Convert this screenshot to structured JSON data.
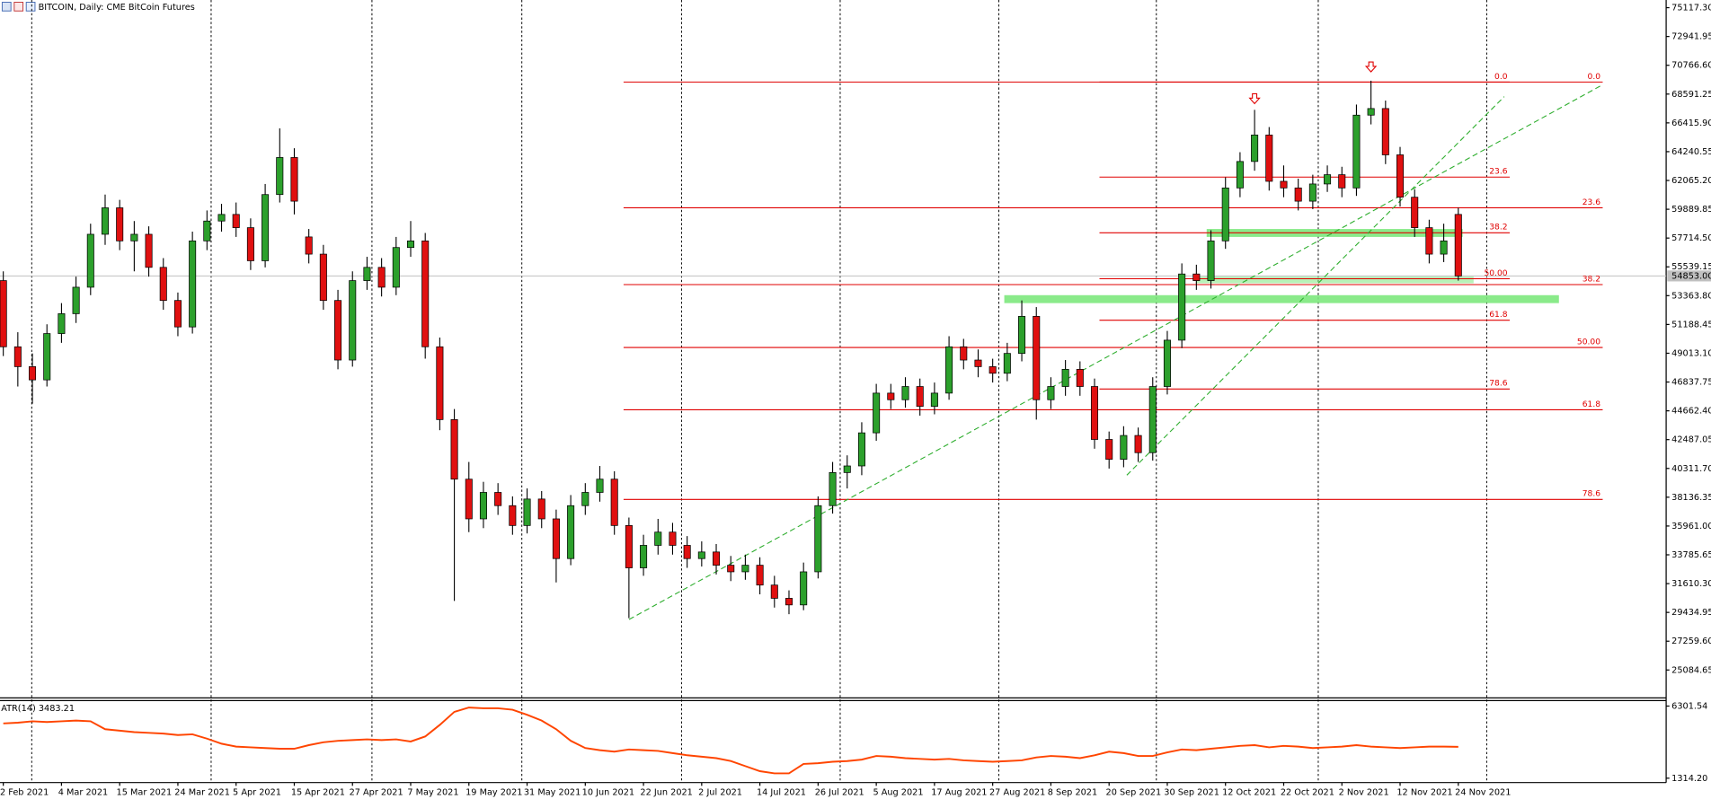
{
  "chart_data": {
    "type": "candlestick",
    "title": "BITCOIN, Daily:  CME BitCoin Futures",
    "up_color": "#2ca02c",
    "down_color": "#e01010",
    "ylim": [
      23020,
      75695
    ],
    "yticks": [
      {
        "value": 75117.3,
        "label": "75117.30"
      },
      {
        "value": 72941.95,
        "label": "72941.95"
      },
      {
        "value": 70766.6,
        "label": "70766.60"
      },
      {
        "value": 68591.25,
        "label": "68591.25"
      },
      {
        "value": 66415.9,
        "label": "66415.90"
      },
      {
        "value": 64240.55,
        "label": "64240.55"
      },
      {
        "value": 62065.2,
        "label": "62065.20"
      },
      {
        "value": 59889.85,
        "label": "59889.85"
      },
      {
        "value": 57714.5,
        "label": "57714.50"
      },
      {
        "value": 55539.15,
        "label": "55539.15"
      },
      {
        "value": 53363.8,
        "label": "53363.80"
      },
      {
        "value": 51188.45,
        "label": "51188.45"
      },
      {
        "value": 49013.1,
        "label": "49013.10"
      },
      {
        "value": 46837.75,
        "label": "46837.75"
      },
      {
        "value": 44662.4,
        "label": "44662.40"
      },
      {
        "value": 42487.05,
        "label": "42487.05"
      },
      {
        "value": 40311.7,
        "label": "40311.70"
      },
      {
        "value": 38136.35,
        "label": "38136.35"
      },
      {
        "value": 35961,
        "label": "35961.00"
      },
      {
        "value": 33785.65,
        "label": "33785.65"
      },
      {
        "value": 31610.3,
        "label": "31610.30"
      },
      {
        "value": 29434.95,
        "label": "29434.95"
      },
      {
        "value": 27259.6,
        "label": "27259.60"
      },
      {
        "value": 25084.65,
        "label": "25084.65"
      }
    ],
    "last_price_label": "54853.00",
    "categories": [
      "2 Feb 2021",
      null,
      null,
      null,
      "4 Mar 2021",
      null,
      null,
      null,
      "15 Mar 2021",
      null,
      null,
      null,
      "24 Mar 2021",
      null,
      null,
      null,
      "5 Apr 2021",
      null,
      null,
      null,
      "15 Apr 2021",
      null,
      null,
      null,
      "27 Apr 2021",
      null,
      null,
      null,
      "7 May 2021",
      null,
      null,
      null,
      "19 May 2021",
      null,
      null,
      null,
      "31 May 2021",
      null,
      null,
      null,
      "10 Jun 2021",
      null,
      null,
      null,
      "22 Jun 2021",
      null,
      null,
      null,
      "2 Jul 2021",
      null,
      null,
      null,
      "14 Jul 2021",
      null,
      null,
      null,
      "26 Jul 2021",
      null,
      null,
      null,
      "5 Aug 2021",
      null,
      null,
      null,
      "17 Aug 2021",
      null,
      null,
      null,
      "27 Aug 2021",
      null,
      null,
      null,
      "8 Sep 2021",
      null,
      null,
      null,
      "20 Sep 2021",
      null,
      null,
      null,
      "30 Sep 2021",
      null,
      null,
      null,
      "12 Oct 2021",
      null,
      null,
      null,
      "22 Oct 2021",
      null,
      null,
      null,
      "2 Nov 2021",
      null,
      null,
      null,
      "12 Nov 2021",
      null,
      null,
      null,
      "24 Nov 2021"
    ],
    "candles": [
      [
        54500,
        55200,
        48800,
        49500
      ],
      [
        49500,
        50600,
        46500,
        48000
      ],
      [
        48000,
        49000,
        45200,
        47000
      ],
      [
        47000,
        51200,
        46500,
        50500
      ],
      [
        50500,
        52800,
        49800,
        52000
      ],
      [
        52000,
        54800,
        51300,
        54000
      ],
      [
        54000,
        58800,
        53400,
        58000
      ],
      [
        58000,
        61000,
        57200,
        60000
      ],
      [
        60000,
        60600,
        56800,
        57500
      ],
      [
        57500,
        59000,
        55200,
        58000
      ],
      [
        58000,
        58600,
        54800,
        55500
      ],
      [
        55500,
        56200,
        52300,
        53000
      ],
      [
        53000,
        53600,
        50300,
        51000
      ],
      [
        51000,
        58200,
        50500,
        57500
      ],
      [
        57500,
        59800,
        56800,
        59000
      ],
      [
        59000,
        60300,
        58200,
        59500
      ],
      [
        59500,
        60400,
        57800,
        58500
      ],
      [
        58500,
        59200,
        55300,
        56000
      ],
      [
        56000,
        61800,
        55500,
        61000
      ],
      [
        61000,
        66000,
        60400,
        63800
      ],
      [
        63800,
        64500,
        59500,
        60500
      ],
      [
        57800,
        58400,
        55800,
        56500
      ],
      [
        56500,
        57200,
        52300,
        53000
      ],
      [
        53000,
        53800,
        47800,
        48500
      ],
      [
        48500,
        55200,
        48000,
        54500
      ],
      [
        54500,
        56300,
        53800,
        55500
      ],
      [
        55500,
        56200,
        53300,
        54000
      ],
      [
        54000,
        57800,
        53400,
        57000
      ],
      [
        57000,
        59000,
        56300,
        57500
      ],
      [
        57500,
        58100,
        48600,
        49500
      ],
      [
        49500,
        50200,
        43200,
        44000
      ],
      [
        44000,
        44800,
        30300,
        39500
      ],
      [
        39500,
        40800,
        35500,
        36500
      ],
      [
        36500,
        39300,
        35800,
        38500
      ],
      [
        38500,
        39200,
        36800,
        37500
      ],
      [
        37500,
        38200,
        35300,
        36000
      ],
      [
        36000,
        38800,
        35400,
        38000
      ],
      [
        38000,
        38600,
        35800,
        36500
      ],
      [
        36500,
        37200,
        31700,
        33500
      ],
      [
        33500,
        38300,
        33000,
        37500
      ],
      [
        37500,
        39200,
        36800,
        38500
      ],
      [
        38500,
        40500,
        37800,
        39500
      ],
      [
        39500,
        40100,
        35300,
        36000
      ],
      [
        36000,
        36600,
        29000,
        32800
      ],
      [
        32800,
        35300,
        32200,
        34500
      ],
      [
        34500,
        36500,
        33800,
        35500
      ],
      [
        35500,
        36200,
        33800,
        34500
      ],
      [
        34500,
        35200,
        32800,
        33500
      ],
      [
        33500,
        34800,
        32900,
        34000
      ],
      [
        34000,
        34600,
        32300,
        33000
      ],
      [
        33000,
        33700,
        31800,
        32500
      ],
      [
        32500,
        33800,
        31900,
        33000
      ],
      [
        33000,
        33600,
        30800,
        31500
      ],
      [
        31500,
        32200,
        29800,
        30500
      ],
      [
        30500,
        31100,
        29300,
        30000
      ],
      [
        30000,
        33200,
        29600,
        32500
      ],
      [
        32500,
        38200,
        32000,
        37500
      ],
      [
        37500,
        40800,
        36900,
        40000
      ],
      [
        40000,
        41300,
        38800,
        40500
      ],
      [
        40500,
        43800,
        39800,
        43000
      ],
      [
        43000,
        46700,
        42400,
        46000
      ],
      [
        46000,
        46700,
        44800,
        45500
      ],
      [
        45500,
        47200,
        44900,
        46500
      ],
      [
        46500,
        47100,
        44300,
        45000
      ],
      [
        45000,
        46800,
        44400,
        46000
      ],
      [
        46000,
        50300,
        45500,
        49500
      ],
      [
        49500,
        50100,
        47800,
        48500
      ],
      [
        48500,
        49300,
        47200,
        48000
      ],
      [
        48000,
        48600,
        46800,
        47500
      ],
      [
        47500,
        49800,
        46900,
        49000
      ],
      [
        49000,
        53000,
        48400,
        51800
      ],
      [
        51800,
        52500,
        44000,
        45500
      ],
      [
        45500,
        47200,
        44800,
        46500
      ],
      [
        46500,
        48500,
        45800,
        47800
      ],
      [
        47800,
        48400,
        45800,
        46500
      ],
      [
        46500,
        47100,
        41800,
        42500
      ],
      [
        42500,
        43100,
        40300,
        41000
      ],
      [
        41000,
        43500,
        40400,
        42800
      ],
      [
        42800,
        43400,
        40800,
        41500
      ],
      [
        41500,
        47200,
        40900,
        46500
      ],
      [
        46500,
        50700,
        45900,
        50000
      ],
      [
        50000,
        55800,
        49400,
        55000
      ],
      [
        55000,
        55700,
        53800,
        54500
      ],
      [
        54500,
        58300,
        53900,
        57500
      ],
      [
        57500,
        62300,
        56900,
        61500
      ],
      [
        61500,
        64200,
        60800,
        63500
      ],
      [
        63500,
        67400,
        62800,
        65500
      ],
      [
        65500,
        66100,
        61300,
        62000
      ],
      [
        62000,
        63200,
        60800,
        61500
      ],
      [
        61500,
        62200,
        59800,
        60500
      ],
      [
        60500,
        62500,
        59900,
        61800
      ],
      [
        61800,
        63200,
        61200,
        62500
      ],
      [
        62500,
        63100,
        60800,
        61500
      ],
      [
        61500,
        67800,
        60900,
        67000
      ],
      [
        67000,
        69600,
        66300,
        67500
      ],
      [
        67500,
        68100,
        63300,
        64000
      ],
      [
        64000,
        64600,
        60100,
        60800
      ],
      [
        60800,
        61400,
        57800,
        58500
      ],
      [
        58500,
        59100,
        55800,
        56500
      ],
      [
        56500,
        58800,
        55900,
        57500
      ],
      [
        59500,
        60000,
        54500,
        54853
      ]
    ],
    "fib_sets": [
      {
        "color": "#e00000",
        "levels": [
          {
            "label": "0.0",
            "price": 69500
          },
          {
            "label": "23.6",
            "price": 60000
          },
          {
            "label": "38.2",
            "price": 54200
          },
          {
            "label": "50.00",
            "price": 49450
          },
          {
            "label": "61.8",
            "price": 44740
          },
          {
            "label": "78.6",
            "price": 37970
          }
        ]
      },
      {
        "color": "#e00000",
        "levels": [
          {
            "label": "0.0",
            "price": 69500
          },
          {
            "label": "23.6",
            "price": 62320
          },
          {
            "label": "38.2",
            "price": 58110
          },
          {
            "label": "50.00",
            "price": 54640
          },
          {
            "label": "61.8",
            "price": 51510
          },
          {
            "label": "78.6",
            "price": 46310
          }
        ]
      }
    ],
    "zones": [
      [
        58400,
        57800
      ],
      [
        54800,
        54300
      ],
      [
        53400,
        52800
      ]
    ],
    "zone_color": "#7de87d",
    "trendlines": [
      [
        28900,
        69300
      ],
      [
        39800,
        68400
      ]
    ],
    "trendline_color": "#2fae2f",
    "arrows": [
      {
        "index": 86,
        "price": 68200
      },
      {
        "index": 94,
        "price": 70600
      }
    ],
    "atr": {
      "name": "ATR(14)",
      "color": "#ff4500",
      "ylim": [
        1012,
        6755
      ],
      "yticks": [
        {
          "value": 6301.54,
          "label": "6301.54"
        },
        {
          "value": 1314.2,
          "label": "1314.20"
        }
      ],
      "values": [
        5100,
        5150,
        5250,
        5200,
        5250,
        5300,
        5250,
        4700,
        4600,
        4500,
        4450,
        4400,
        4300,
        4350,
        4050,
        3700,
        3500,
        3450,
        3400,
        3350,
        3350,
        3600,
        3800,
        3900,
        3950,
        4000,
        3950,
        4000,
        3850,
        4200,
        5000,
        5900,
        6200,
        6150,
        6150,
        6050,
        5700,
        5300,
        4700,
        3900,
        3400,
        3250,
        3150,
        3300,
        3250,
        3200,
        3050,
        2900,
        2800,
        2700,
        2500,
        2150,
        1800,
        1650,
        1650,
        2300,
        2350,
        2450,
        2500,
        2600,
        2850,
        2800,
        2700,
        2650,
        2600,
        2650,
        2550,
        2500,
        2450,
        2500,
        2550,
        2750,
        2850,
        2800,
        2700,
        2900,
        3150,
        3050,
        2850,
        2850,
        3100,
        3300,
        3250,
        3350,
        3450,
        3550,
        3600,
        3450,
        3550,
        3500,
        3400,
        3450,
        3500,
        3600,
        3500,
        3450,
        3400,
        3450,
        3500,
        3500,
        3483.21
      ]
    }
  }
}
